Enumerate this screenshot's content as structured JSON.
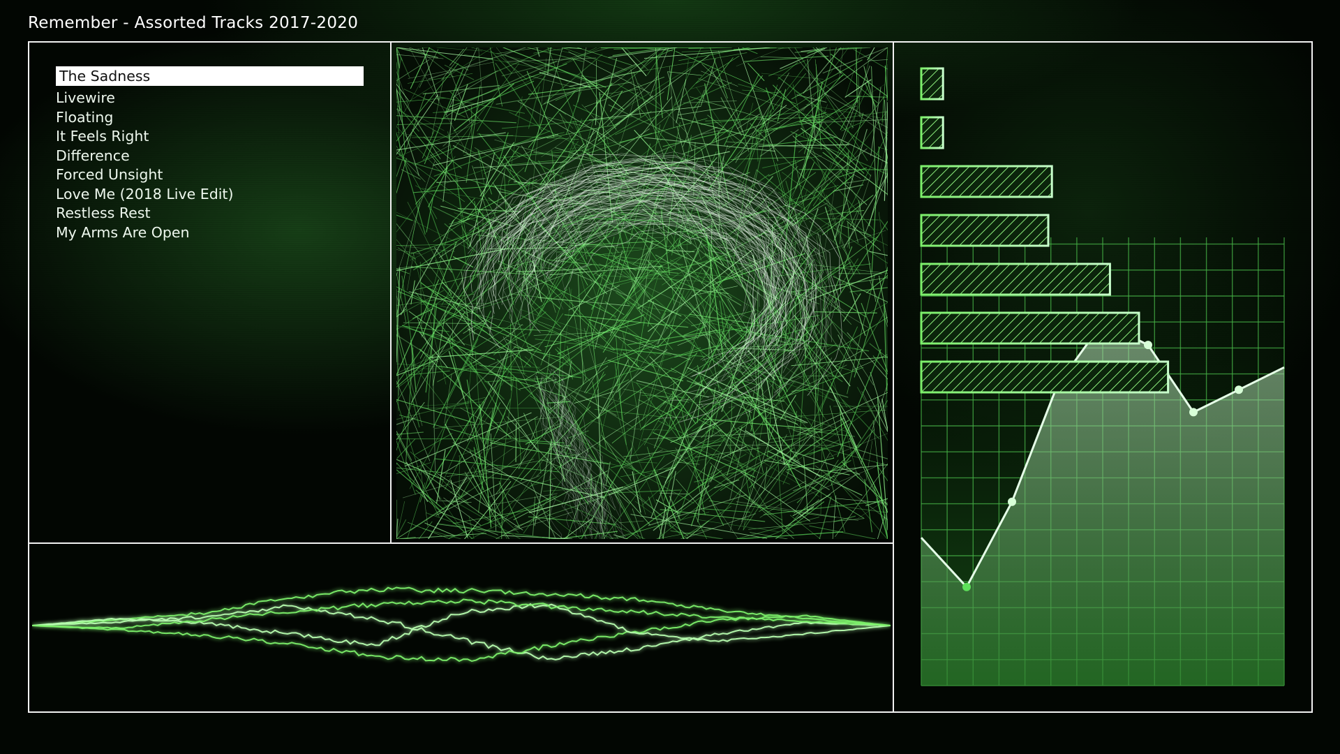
{
  "header": {
    "title": "Remember - Assorted Tracks 2017-2020"
  },
  "playlist": {
    "selected_index": 0,
    "tracks": [
      "The Sadness",
      "Livewire",
      "Floating",
      "It Feels Right",
      "Difference",
      "Forced Unsight",
      "Love Me (2018 Live Edit)",
      "Restless Rest",
      "My Arms Are Open"
    ]
  },
  "theme": {
    "accent": "#7CF06A",
    "accent_bright": "#B8FFB0",
    "frame": "#F2F2F2",
    "background": "#020602"
  },
  "visualizer": {
    "level_bars": [
      0.06,
      0.06,
      0.36,
      0.35,
      0.52,
      0.6,
      0.68
    ],
    "spectrum_points": [
      0.33,
      0.22,
      0.41,
      0.67,
      0.81,
      0.76,
      0.61,
      0.66,
      0.71
    ]
  }
}
